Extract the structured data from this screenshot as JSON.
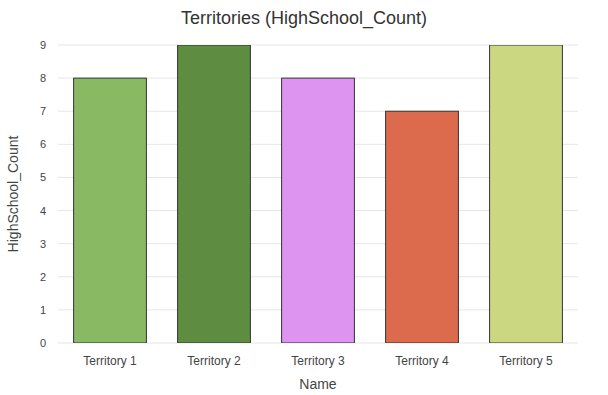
{
  "chart_data": {
    "type": "bar",
    "title": "Territories (HighSchool_Count)",
    "x_label": "Name",
    "y_label": "HighSchool_Count",
    "categories": [
      "Territory 1",
      "Territory 2",
      "Territory 3",
      "Territory 4",
      "Territory 5"
    ],
    "values": [
      8,
      9,
      8,
      7,
      9
    ],
    "colors": [
      "#8ab964",
      "#5e8c40",
      "#dc94f0",
      "#dc6b4d",
      "#ccd782"
    ],
    "ylim": [
      0,
      9
    ],
    "yticks": [
      0,
      1,
      2,
      3,
      4,
      5,
      6,
      7,
      8,
      9
    ],
    "grid": true
  }
}
